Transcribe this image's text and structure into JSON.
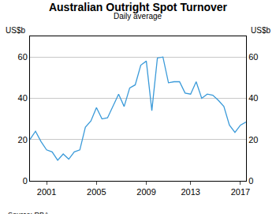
{
  "chart_data": {
    "type": "line",
    "title": "Australian Outright Spot Turnover",
    "subtitle": "Daily average",
    "y_label": "US$b",
    "y2_label": "US$b",
    "note": "Source: RBA",
    "categories": [
      null,
      null,
      null,
      "2001",
      null,
      null,
      null,
      null,
      null,
      null,
      null,
      null,
      "2005",
      null,
      null,
      null,
      null,
      null,
      null,
      null,
      null,
      "2009",
      null,
      null,
      null,
      null,
      null,
      null,
      null,
      "2013",
      null,
      null,
      null,
      null,
      null,
      null,
      null,
      null,
      "2017",
      null
    ],
    "values": [
      20,
      24,
      19,
      15,
      14,
      10,
      13,
      10.5,
      14,
      15,
      26,
      29,
      35.5,
      30,
      30.5,
      36,
      42,
      36,
      45,
      46.5,
      56,
      58,
      34,
      59.5,
      60,
      47.5,
      48,
      48,
      42.5,
      42,
      48,
      40,
      42,
      41.5,
      39,
      36,
      27,
      23.5,
      27,
      28.5
    ],
    "color": "#3a9ad9",
    "ylim": [
      0,
      70
    ],
    "yticks": [
      0,
      20,
      40,
      60
    ],
    "y2lim": [
      0,
      70
    ],
    "y2ticks": [
      0,
      20,
      40,
      60
    ],
    "grid": true
  }
}
